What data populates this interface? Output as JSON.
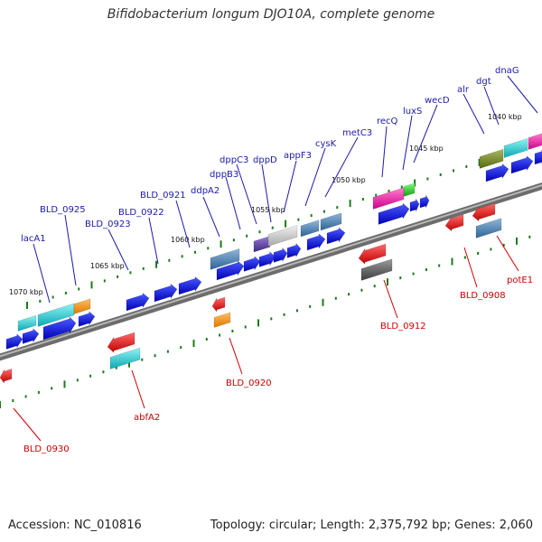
{
  "title": "Bifidobacterium longum DJO10A, complete genome",
  "footer": {
    "accession": "Accession: NC_010816",
    "topology": "Topology: circular; Length: 2,375,792 bp; Genes: 2,060"
  },
  "scale_labels": [
    "1070 kbp",
    "1065 kbp",
    "1060 kbp",
    "1055 kbp",
    "1050 kbp",
    "1045 kbp",
    "1040 kbp"
  ],
  "top_labels": [
    "lacA1",
    "BLD_0925",
    "BLD_0923",
    "BLD_0922",
    "BLD_0921",
    "ddpA2",
    "dppB3",
    "dppC3",
    "dppD",
    "appF3",
    "cysK",
    "metC3",
    "recQ",
    "luxS",
    "wecD",
    "alr",
    "dgt",
    "dnaG"
  ],
  "bottom_labels": [
    "BLD_0930",
    "abfA2",
    "BLD_0920",
    "BLD_0912",
    "BLD_0908",
    "potE1"
  ],
  "colors": {
    "forward_gene": "#0000dd",
    "reverse_gene": "#e00000",
    "top_label": "#1a1aaa",
    "bottom_label": "#cc0000",
    "backbone": "#777777",
    "tick": "#1d7a1d"
  }
}
